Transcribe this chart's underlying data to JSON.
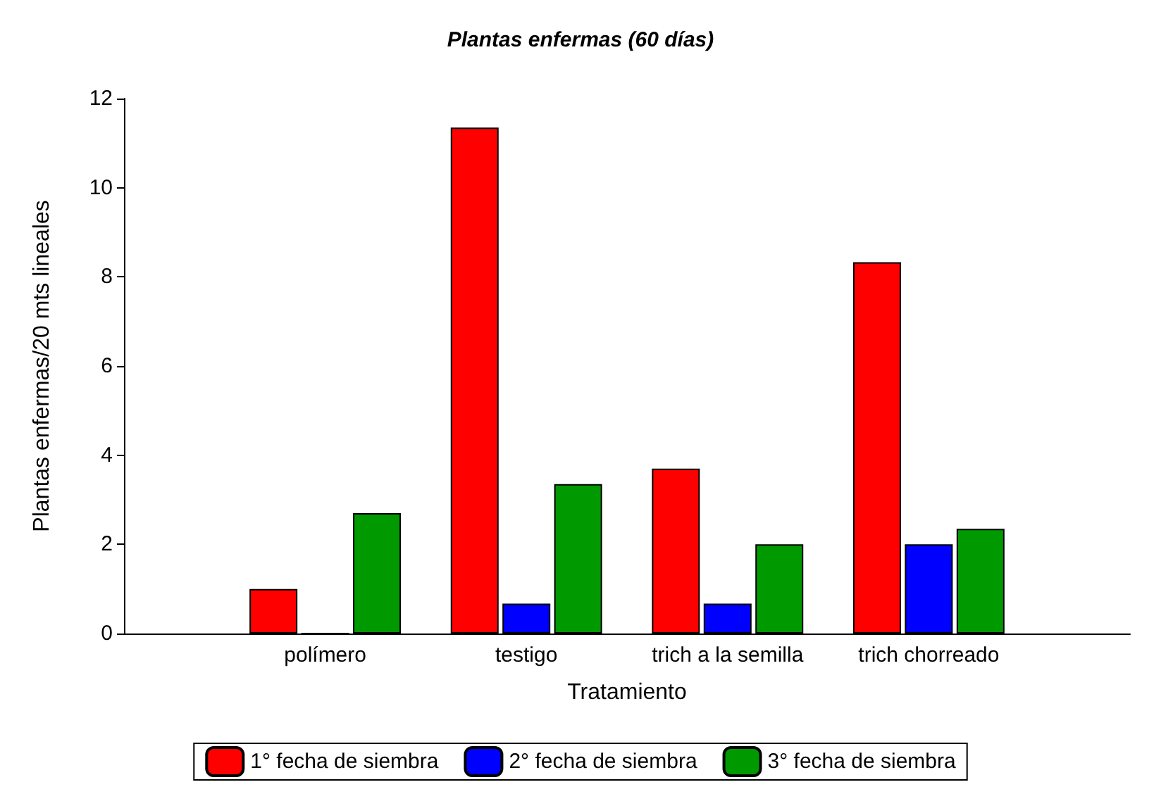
{
  "chart_data": {
    "type": "bar",
    "title": "Plantas enfermas (60 días)",
    "xlabel": "Tratamiento",
    "ylabel": "Plantas enfermas/20 mts lineales",
    "categories": [
      null,
      "polímero",
      "testigo",
      "trich a la semilla",
      "trich chorreado",
      null
    ],
    "series": [
      {
        "name": "1° fecha de siembra",
        "color": "#ff0000",
        "values": [
          null,
          1.0,
          11.35,
          3.7,
          8.33,
          null
        ]
      },
      {
        "name": "2° fecha de siembra",
        "color": "#0000ff",
        "values": [
          null,
          0,
          0.67,
          0.67,
          2.0,
          null
        ]
      },
      {
        "name": "3° fecha de siembra",
        "color": "#009900",
        "values": [
          null,
          2.7,
          3.35,
          2.0,
          2.35,
          null
        ]
      }
    ],
    "ylim": [
      0,
      12
    ],
    "yticks": [
      0,
      2,
      4,
      6,
      8,
      10,
      12
    ],
    "grid": false,
    "legend": "bottom"
  }
}
